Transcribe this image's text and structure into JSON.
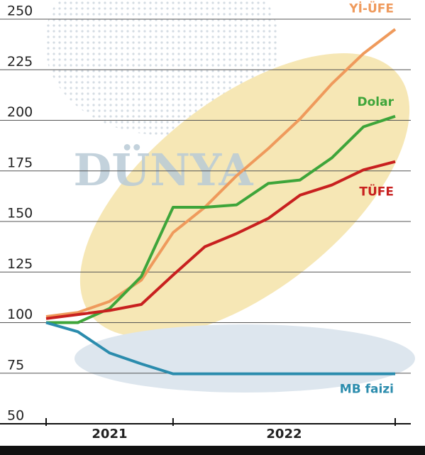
{
  "chart_data": {
    "type": "line",
    "watermark": "DÜNYA",
    "categories": [
      null,
      null,
      null,
      null,
      null,
      null,
      null,
      null,
      null,
      null,
      null,
      null
    ],
    "x_groups": [
      {
        "label": "2021",
        "from": 0,
        "to": 4
      },
      {
        "label": "2022",
        "from": 4,
        "to": 11
      }
    ],
    "ylim": [
      50,
      250
    ],
    "yticks": [
      50,
      75,
      100,
      125,
      150,
      175,
      200,
      225,
      250
    ],
    "grid": true,
    "series": [
      {
        "name": "Yİ-ÜFE",
        "color": "#ef9a5c",
        "values": [
          103,
          105,
          110.5,
          121,
          144.5,
          157,
          172.6,
          186,
          200.7,
          218,
          233,
          245
        ]
      },
      {
        "name": "Dolar",
        "color": "#3ea53a",
        "values": [
          100,
          100,
          107,
          122.8,
          157,
          157,
          158.2,
          168.8,
          170.5,
          181.4,
          196.8,
          202
        ]
      },
      {
        "name": "TÜFE",
        "color": "#c8201f",
        "values": [
          102,
          104,
          106,
          109,
          123.5,
          137.5,
          144,
          151.5,
          163,
          168,
          175.5,
          179.6
        ]
      },
      {
        "name": "MB faizi",
        "color": "#2b8cad",
        "values": [
          100,
          95.5,
          85,
          79.6,
          74.7,
          74.7,
          74.7,
          74.7,
          74.7,
          74.7,
          74.7,
          74.7
        ]
      }
    ]
  }
}
